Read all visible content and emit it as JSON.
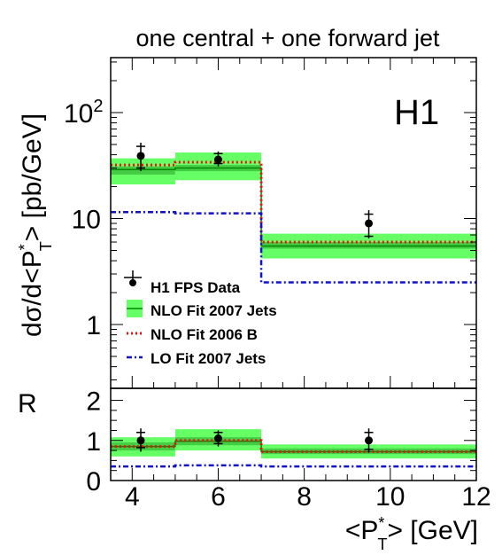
{
  "chart_data": [
    {
      "panel": "main",
      "type": "step",
      "title": "one central + one forward jet",
      "ylabel": "dσ/d<P*_T> [pb/GeV]",
      "ylabel_parts": {
        "pre": "dσ/d<P",
        "sup": "*",
        "sub": "T",
        "post": "> [pb/GeV]"
      },
      "ylog": true,
      "ylim": [
        0.25,
        330
      ],
      "xlim": [
        3.5,
        12
      ],
      "experiment_label": "H1",
      "yticks": [
        {
          "value": 1,
          "label": "1"
        },
        {
          "value": 10,
          "label": "10"
        },
        {
          "value": 100,
          "label": "10",
          "sup": "2"
        }
      ],
      "bins": [
        [
          3.5,
          5.0
        ],
        [
          5.0,
          7.0
        ],
        [
          7.0,
          12.0
        ]
      ],
      "series": [
        {
          "name": "H1 FPS Data",
          "kind": "points",
          "x": [
            4.2,
            6.0,
            9.5
          ],
          "y": [
            39,
            36,
            9
          ],
          "yerr_stat_low": [
            30,
            33,
            6.8
          ],
          "yerr_stat_high": [
            48,
            41,
            11
          ],
          "yerr_tot_low": [
            28,
            31,
            6.5
          ],
          "yerr_tot_high": [
            52,
            43,
            12
          ]
        },
        {
          "name": "NLO Fit 2007 Jets",
          "kind": "band",
          "central": [
            29,
            30,
            5.5
          ],
          "low": [
            21,
            23,
            4.2
          ],
          "high": [
            37,
            42,
            7.2
          ],
          "inner_low": [
            26,
            28,
            5.2
          ],
          "inner_high": [
            31,
            32,
            6.0
          ],
          "color": "#66ff66",
          "line_color": "#008800"
        },
        {
          "name": "NLO Fit 2006 B",
          "kind": "dotted",
          "values": [
            32,
            34,
            6.0
          ],
          "color": "#ee1111"
        },
        {
          "name": "LO Fit 2007 Jets",
          "kind": "dashdot",
          "values": [
            11.5,
            11.2,
            2.5
          ],
          "color": "#1111cc"
        }
      ]
    },
    {
      "panel": "ratio",
      "type": "step",
      "ylabel": "R",
      "xlabel": "<P*_T> [GeV]",
      "xlabel_parts": {
        "pre": "<P",
        "sup": "*",
        "sub": "T",
        "post": "> [GeV]"
      },
      "ylim": [
        0,
        2.3
      ],
      "xlim": [
        3.5,
        12
      ],
      "yticks": [
        "0",
        "1",
        "2"
      ],
      "xticks": [
        "4",
        "6",
        "8",
        "10",
        "12"
      ],
      "bins": [
        [
          3.5,
          5.0
        ],
        [
          5.0,
          7.0
        ],
        [
          7.0,
          12.0
        ]
      ],
      "series": [
        {
          "name": "H1 FPS Data",
          "kind": "points",
          "x": [
            4.2,
            6.0,
            9.5
          ],
          "y": [
            1.0,
            1.05,
            1.0
          ],
          "yerr_stat_low": [
            0.82,
            0.92,
            0.78
          ],
          "yerr_stat_high": [
            1.2,
            1.2,
            1.2
          ],
          "yerr_tot_low": [
            0.72,
            0.85,
            0.7
          ],
          "yerr_tot_high": [
            1.3,
            1.25,
            1.3
          ]
        },
        {
          "name": "NLO Fit 2007 Jets",
          "kind": "band",
          "central": [
            0.85,
            0.98,
            0.72
          ],
          "low": [
            0.6,
            0.75,
            0.55
          ],
          "high": [
            1.08,
            1.28,
            0.9
          ],
          "inner_low": [
            0.75,
            0.88,
            0.66
          ],
          "inner_high": [
            0.95,
            1.08,
            0.8
          ]
        },
        {
          "name": "NLO Fit 2006 B",
          "kind": "dotted",
          "values": [
            0.85,
            1.0,
            0.72
          ]
        },
        {
          "name": "LO Fit 2007 Jets",
          "kind": "dashdot",
          "values": [
            0.35,
            0.38,
            0.35
          ]
        }
      ]
    }
  ]
}
